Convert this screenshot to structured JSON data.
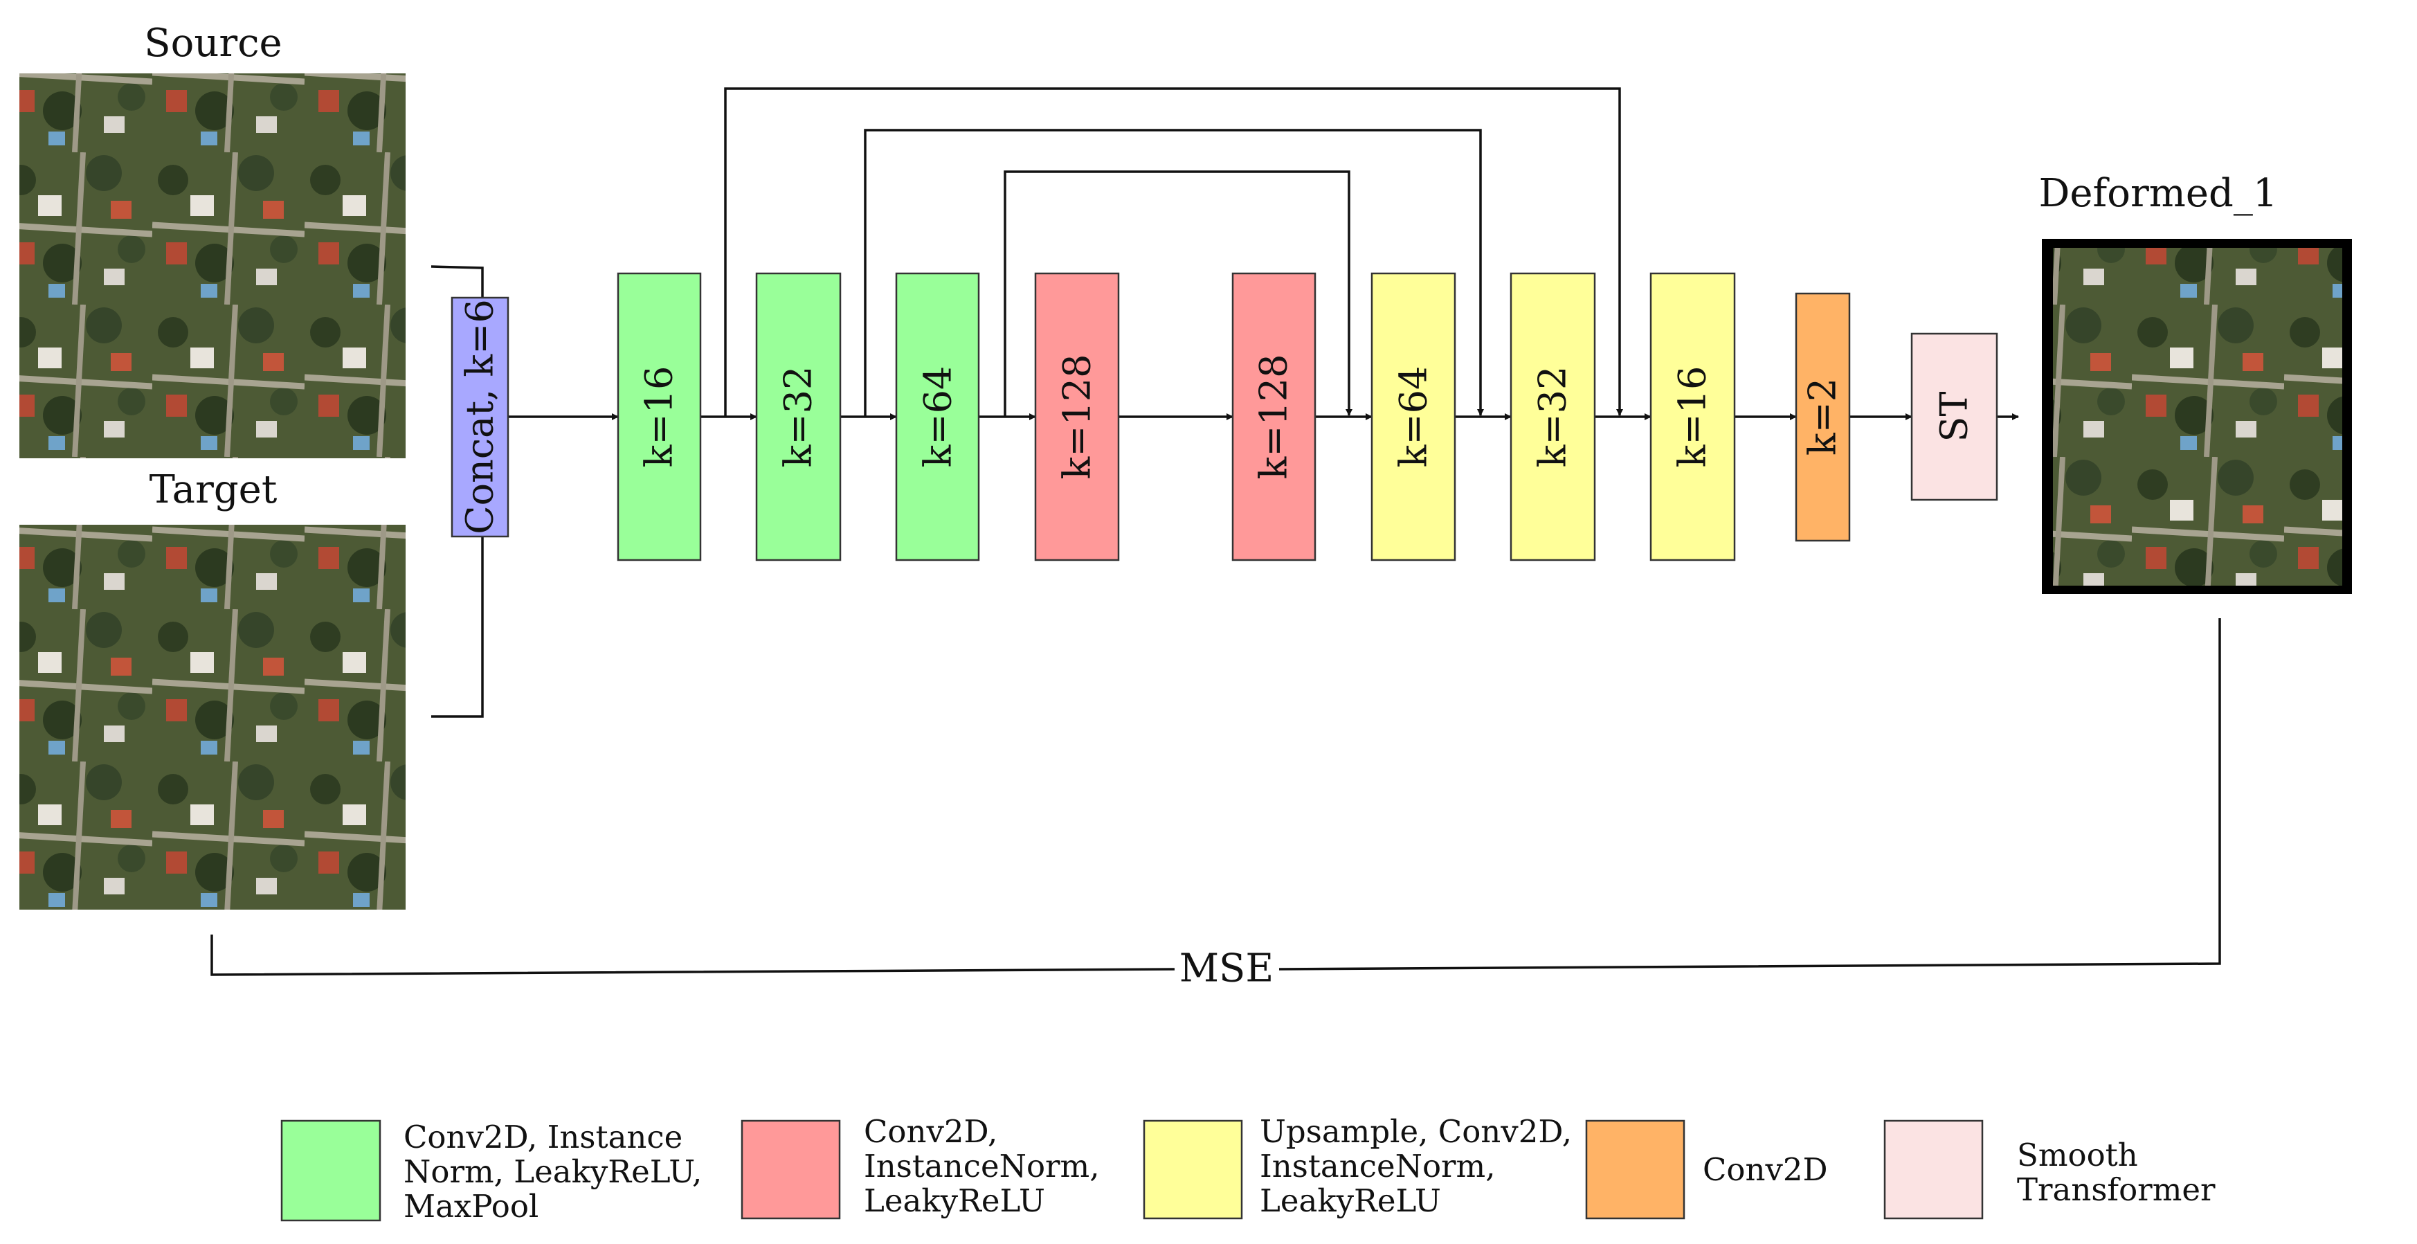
{
  "title_labels": {
    "source": "Source",
    "target": "Target",
    "deformed": "Deformed_1",
    "loss": "MSE"
  },
  "icons": {
    "source_image": "aerial-image-icon",
    "target_image": "aerial-image-icon",
    "deformed_image": "aerial-image-icon"
  },
  "colors": {
    "concat": "#a8a8ff",
    "encoder": "#99ff99",
    "bottleneck": "#ff9999",
    "decoder": "#ffff99",
    "conv": "#ffb366",
    "transformer": "#fbe3e3"
  },
  "blocks": {
    "concat": "Concat, k=6",
    "enc1": "k=16",
    "enc2": "k=32",
    "enc3": "k=64",
    "bott1": "k=128",
    "bott2": "k=128",
    "dec1": "k=64",
    "dec2": "k=32",
    "dec3": "k=16",
    "conv": "k=2",
    "st": "ST"
  },
  "legend": [
    {
      "lines": [
        "Conv2D, Instance",
        "Norm, LeakyReLU,",
        "MaxPool"
      ]
    },
    {
      "lines": [
        "Conv2D,",
        "InstanceNorm,",
        "LeakyReLU"
      ]
    },
    {
      "lines": [
        "Upsample, Conv2D,",
        "InstanceNorm,",
        "LeakyReLU"
      ]
    },
    {
      "lines": [
        "Conv2D"
      ]
    },
    {
      "lines": [
        "Smooth",
        "Transformer"
      ]
    }
  ]
}
